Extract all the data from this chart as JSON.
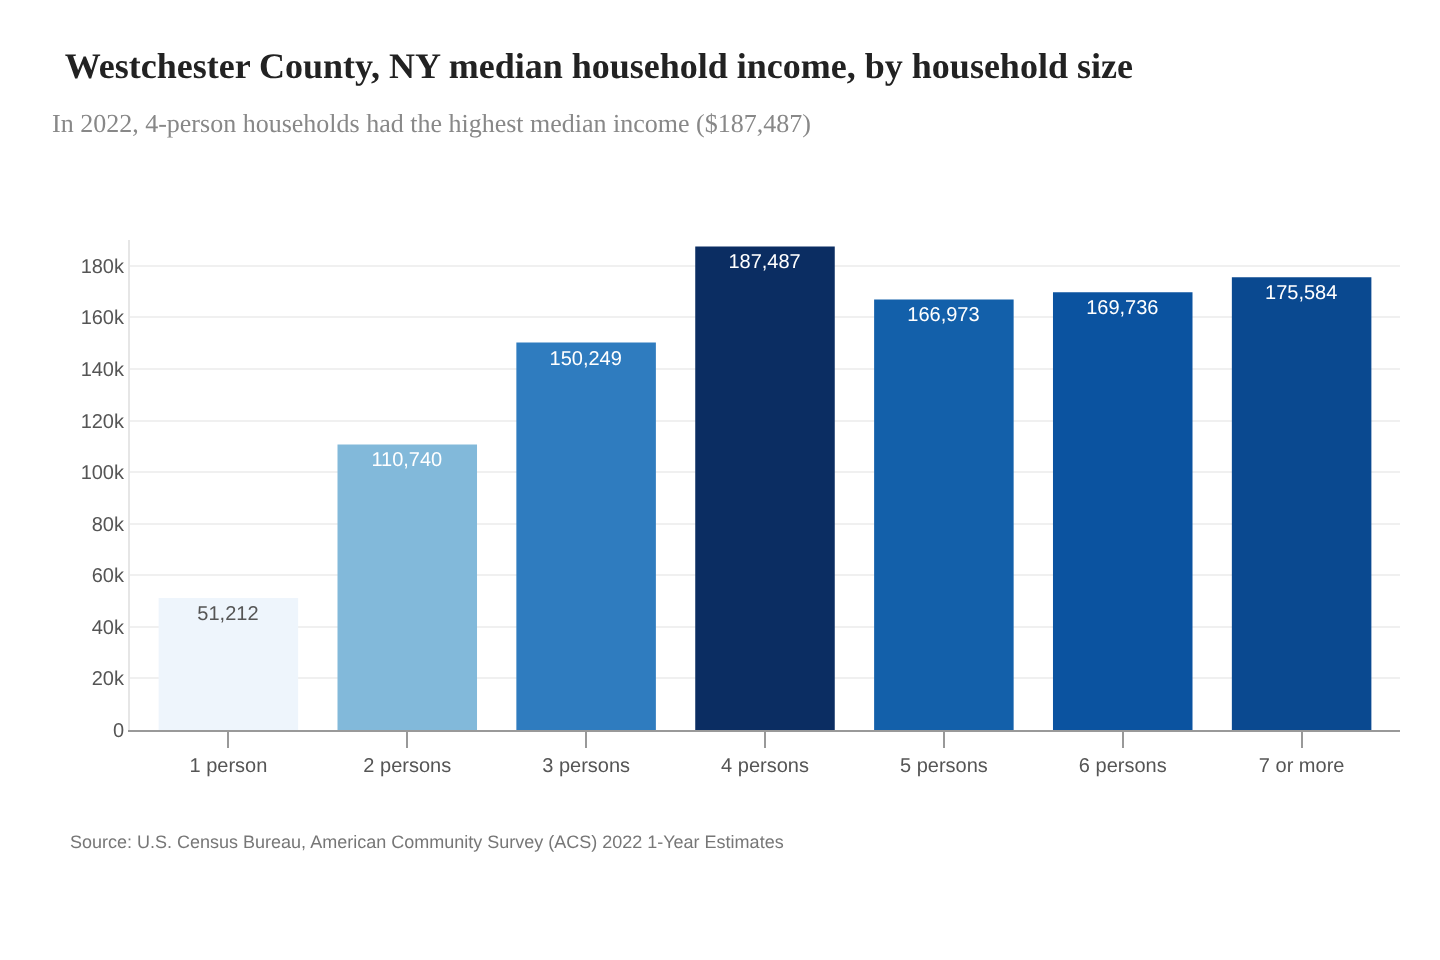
{
  "chart_data": {
    "type": "bar",
    "title": "Westchester County, NY median household income, by household size",
    "subtitle": "In 2022, 4-person households had the highest median income ($187,487)",
    "categories": [
      "1 person",
      "2 persons",
      "3 persons",
      "4 persons",
      "5 persons",
      "6 persons",
      "7 or more"
    ],
    "values": [
      51212,
      110740,
      150249,
      187487,
      166973,
      169736,
      175584
    ],
    "colors": [
      "#eef5fc",
      "#82b9da",
      "#2f7cbf",
      "#0b2d62",
      "#1360aa",
      "#0b53a0",
      "#0a4990"
    ],
    "ylim": [
      0,
      190000
    ],
    "yticks": [
      {
        "value": 0,
        "label": "0"
      },
      {
        "value": 20000,
        "label": "20k"
      },
      {
        "value": 40000,
        "label": "40k"
      },
      {
        "value": 60000,
        "label": "60k"
      },
      {
        "value": 80000,
        "label": "80k"
      },
      {
        "value": 100000,
        "label": "100k"
      },
      {
        "value": 120000,
        "label": "120k"
      },
      {
        "value": 140000,
        "label": "140k"
      },
      {
        "value": 160000,
        "label": "160k"
      },
      {
        "value": 180000,
        "label": "180k"
      }
    ],
    "value_labels": [
      "51,212",
      "110,740",
      "150,249",
      "187,487",
      "166,973",
      "169,736",
      "175,584"
    ],
    "grid": "y",
    "annotations": [
      "Source: U.S. Census Bureau, American Community Survey (ACS) 2022 1-Year Estimates"
    ]
  }
}
